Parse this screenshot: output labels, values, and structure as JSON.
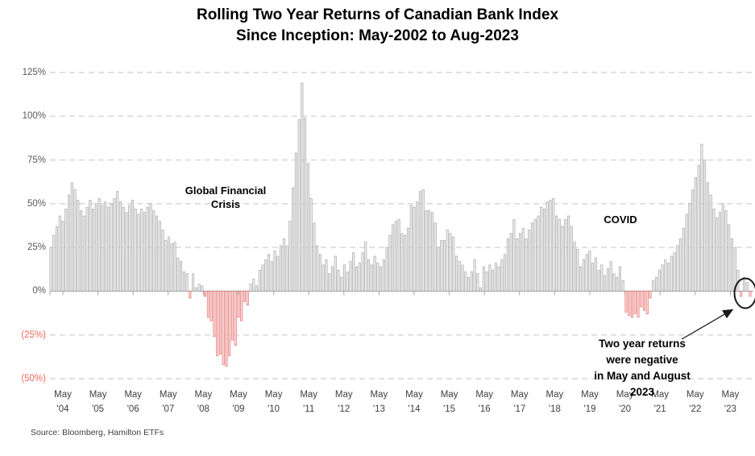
{
  "title": {
    "line1": "Rolling Two Year Returns of Canadian Bank Index",
    "line2": "Since Inception: May-2002 to Aug-2023"
  },
  "source": "Source: Bloomberg, Hamilton ETFs",
  "annotations": {
    "gfc_line1": "Global Financial",
    "gfc_line2": "Crisis",
    "covid": "COVID",
    "note_line1": "Two year returns were negative",
    "note_line2": "in May and August 2023"
  },
  "y_axis": {
    "labels": [
      {
        "text": "125%",
        "value": 125
      },
      {
        "text": "100%",
        "value": 100
      },
      {
        "text": "75%",
        "value": 75
      },
      {
        "text": "50%",
        "value": 50
      },
      {
        "text": "25%",
        "value": 25
      },
      {
        "text": "0%",
        "value": 0
      },
      {
        "text": "(25%)",
        "value": -25
      },
      {
        "text": "(50%)",
        "value": -50
      }
    ]
  },
  "x_axis": {
    "month_label": "May",
    "years": [
      "'04",
      "'05",
      "'06",
      "'07",
      "'08",
      "'09",
      "'10",
      "'11",
      "'12",
      "'13",
      "'14",
      "'15",
      "'16",
      "'17",
      "'18",
      "'19",
      "'20",
      "'21",
      "'22",
      "'23"
    ]
  },
  "colors": {
    "positive_bar_fill": "#eeeeee",
    "positive_bar_stroke": "#a8a8a8",
    "negative_bar_fill": "#fadbd8",
    "negative_bar_stroke": "#e57373",
    "negative_label": "#ef6a5f",
    "gridline": "#d9d9d9",
    "axis": "#a6a6a6",
    "text": "#404040",
    "highlight": "#1a1a1a"
  },
  "chart_data": {
    "type": "bar",
    "title": "Rolling Two Year Returns of Canadian Bank Index Since Inception: May-2002 to Aug-2023",
    "unit": "%",
    "frequency": "monthly",
    "x_start": "2004-05",
    "x_end": "2023-08",
    "ylim": [
      -50,
      125
    ],
    "grid": "dashed-horizontal",
    "legend": "none",
    "annotations": [
      "Global Financial Crisis",
      "COVID",
      "Two year returns were negative in May and August 2023"
    ],
    "values": [
      25,
      32,
      37,
      43,
      40,
      47,
      55,
      62,
      58,
      52,
      46,
      43,
      48,
      52,
      47,
      50,
      53,
      49,
      51,
      48,
      50,
      53,
      57,
      51,
      48,
      45,
      49,
      52,
      47,
      44,
      47,
      45,
      48,
      50,
      46,
      43,
      40,
      35,
      29,
      31,
      27,
      28,
      19,
      17,
      11,
      10,
      -4,
      10,
      2,
      4,
      3,
      -3,
      -15,
      -17,
      -26,
      -37,
      -36,
      -42,
      -43,
      -37,
      -28,
      -31,
      -15,
      -17,
      -6,
      -8,
      4,
      7,
      3,
      12,
      15,
      18,
      21,
      17,
      23,
      20,
      26,
      30,
      26,
      40,
      59,
      79,
      98,
      119,
      99,
      73,
      53,
      39,
      26,
      21,
      15,
      18,
      10,
      14,
      20,
      12,
      8,
      15,
      11,
      17,
      22,
      14,
      16,
      22,
      28,
      18,
      15,
      20,
      16,
      14,
      18,
      25,
      32,
      38,
      40,
      41,
      33,
      32,
      36,
      49,
      48,
      51,
      57,
      58,
      46,
      46,
      45,
      39,
      25,
      29,
      29,
      35,
      33,
      31,
      20,
      17,
      15,
      11,
      8,
      11,
      18,
      10,
      2,
      14,
      11,
      15,
      12,
      16,
      14,
      18,
      21,
      30,
      33,
      41,
      30,
      33,
      36,
      30,
      35,
      39,
      41,
      43,
      48,
      47,
      51,
      52,
      53,
      43,
      41,
      37,
      41,
      43,
      37,
      28,
      24,
      14,
      18,
      21,
      23,
      16,
      19,
      12,
      15,
      9,
      13,
      17,
      10,
      8,
      14,
      6,
      -12,
      -14,
      -15,
      -13,
      -15,
      -9,
      -11,
      -13,
      -4,
      6,
      8,
      12,
      15,
      18,
      16,
      20,
      22,
      26,
      30,
      36,
      44,
      50,
      58,
      65,
      72,
      84,
      75,
      62,
      55,
      47,
      42,
      45,
      50,
      46,
      38,
      30,
      25,
      12,
      -3,
      8,
      5,
      -3
    ]
  }
}
